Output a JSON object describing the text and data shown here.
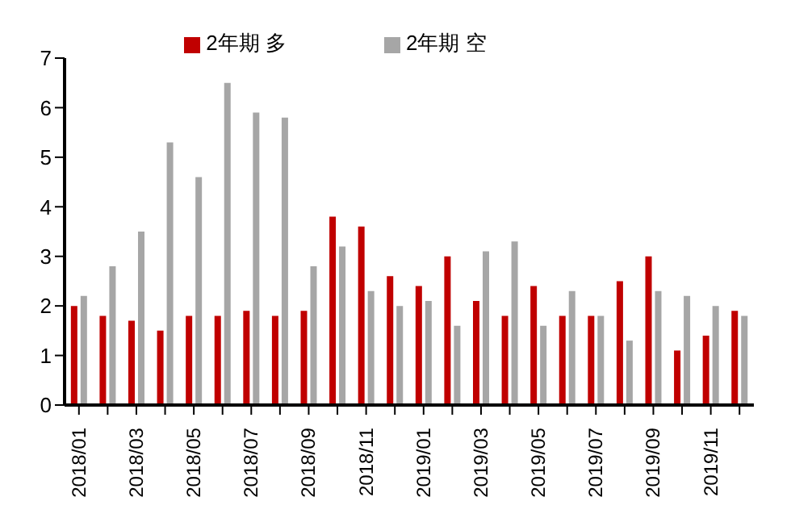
{
  "chart_data": {
    "type": "bar",
    "categories": [
      "2018/01",
      null,
      "2018/03",
      null,
      "2018/05",
      null,
      "2018/07",
      null,
      "2018/09",
      null,
      "2018/11",
      null,
      "2019/01",
      null,
      "2019/03",
      null,
      "2019/05",
      null,
      "2019/07",
      null,
      "2019/09",
      null,
      "2019/11",
      null
    ],
    "series": [
      {
        "name": "2年期 多",
        "color": "#c00000",
        "values": [
          2.0,
          1.8,
          1.7,
          1.5,
          1.8,
          1.8,
          1.9,
          1.8,
          1.9,
          3.8,
          3.6,
          2.6,
          2.4,
          3.0,
          2.1,
          1.8,
          2.4,
          1.8,
          1.8,
          2.5,
          3.0,
          1.1,
          1.4,
          1.9
        ]
      },
      {
        "name": "2年期 空",
        "color": "#a6a6a6",
        "values": [
          2.2,
          2.8,
          3.5,
          5.3,
          4.6,
          6.5,
          5.9,
          5.8,
          2.8,
          3.2,
          2.3,
          2.0,
          2.1,
          1.6,
          3.1,
          3.3,
          1.6,
          2.3,
          1.8,
          1.3,
          2.3,
          2.2,
          2.0,
          1.8
        ]
      }
    ],
    "ylim": [
      0,
      7
    ],
    "yticks": [
      0,
      1,
      2,
      3,
      4,
      5,
      6,
      7
    ],
    "grid": false,
    "legend": "top"
  }
}
